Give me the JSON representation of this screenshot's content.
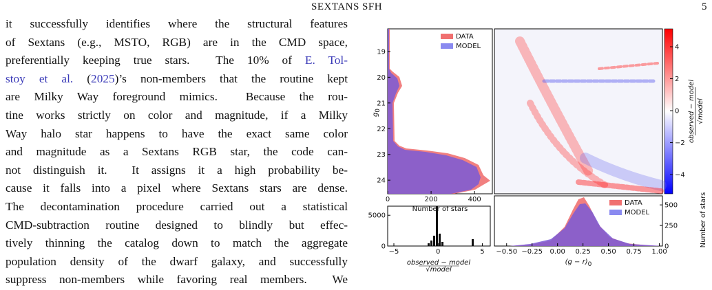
{
  "header": {
    "title": "SEXTANS SFH",
    "page": "5"
  },
  "paragraph": {
    "lines": [
      [
        {
          "text": "it successfully identifies where the structural features"
        }
      ],
      [
        {
          "text": "of Sextans (e.g., MSTO, RGB) are in the CMD space,"
        }
      ],
      [
        {
          "text": "preferentially keeping true stars.  The 10% of "
        },
        {
          "text": "E. Tol-",
          "link": true
        }
      ],
      [
        {
          "text": "stoy et al.",
          "link": true
        },
        {
          "text": " ("
        },
        {
          "text": "2025",
          "link": true
        },
        {
          "text": ")’s non-members that the routine kept"
        }
      ],
      [
        {
          "text": "are Milky Way foreground mimics.  Because the rou-"
        }
      ],
      [
        {
          "text": "tine works strictly on color and magnitude, if a Milky"
        }
      ],
      [
        {
          "text": "Way halo star happens to have the exact same color"
        }
      ],
      [
        {
          "text": "and magnitude as a Sextans RGB star, the code can-"
        }
      ],
      [
        {
          "text": "not distinguish it.  It assigns it a high probability be-"
        }
      ],
      [
        {
          "text": "cause it falls into a pixel where Sextans stars are dense."
        }
      ],
      [
        {
          "text": "The decontamination procedure carried out a statistical"
        }
      ],
      [
        {
          "text": "CMD-subtraction routine designed to blindly but effec-"
        }
      ],
      [
        {
          "text": "tively thinning the catalog down to match the aggregate"
        }
      ],
      [
        {
          "text": "population density of the dwarf galaxy, and successfully"
        }
      ],
      [
        {
          "text": "suppress non-members while favoring real members.  We"
        }
      ]
    ]
  },
  "figure": {
    "legend": [
      "DATA",
      "MODEL"
    ],
    "top_hist": {
      "ylabel": {
        "text": "g",
        "sub": "0"
      },
      "ylim": [
        18.12,
        24.53
      ],
      "yticks": [
        19,
        20,
        21,
        22,
        23,
        24
      ],
      "xlim": [
        0,
        482
      ],
      "xticks": [
        0,
        200,
        400
      ],
      "xlabel": "Number of stars"
    },
    "colorbar": {
      "lim": [
        -5.2,
        5.12
      ],
      "ticks": [
        {
          "value": -4,
          "label": "−4"
        },
        {
          "value": -2,
          "label": "−2"
        },
        0,
        2,
        4
      ],
      "label": {
        "num": "observed − model",
        "den": "model"
      }
    },
    "bottom_left": {
      "xlim": [
        -5.7,
        5.9
      ],
      "xticks": [
        {
          "value": -5,
          "label": "−5"
        },
        0,
        5
      ],
      "ylim": [
        0,
        6477
      ],
      "yticks": [
        0,
        5000
      ],
      "xlabel": {
        "num": "observed − model",
        "den": "model"
      }
    },
    "bottom_right": {
      "xlim": [
        -0.62,
        1.03
      ],
      "xticks": [
        {
          "value": -0.5,
          "label": "−0.50"
        },
        {
          "value": -0.25,
          "label": "−0.25"
        },
        {
          "value": 0,
          "label": "0.00"
        },
        {
          "value": 0.25,
          "label": "0.25"
        },
        {
          "value": 0.5,
          "label": "0.50"
        },
        {
          "value": 0.75,
          "label": "0.75"
        },
        {
          "value": 1,
          "label": "1.00"
        }
      ],
      "ylim": [
        0,
        610
      ],
      "yticks": [
        0,
        250,
        500
      ],
      "xlabel": {
        "text": "(g − r)",
        "sub": "0"
      },
      "ylabel": "Number of stars"
    }
  }
}
